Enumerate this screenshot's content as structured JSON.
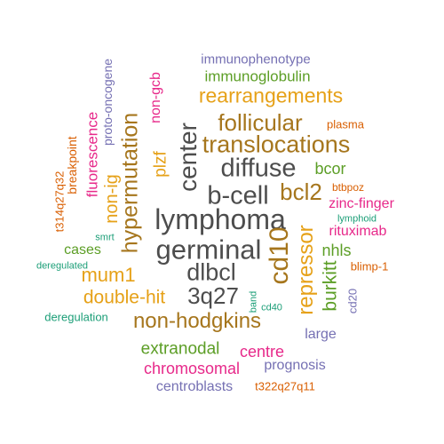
{
  "colors": {
    "dark": "#4d4d4d",
    "gold": "#e6a118",
    "brown": "#a6761d",
    "green": "#5c9e26",
    "magenta": "#e7298a",
    "orange": "#d95f02",
    "teal": "#1b9e77",
    "purple": "#7570b3"
  },
  "words": [
    {
      "text": "lymphoma"
    },
    {
      "text": "germinal"
    },
    {
      "text": "b-cell"
    },
    {
      "text": "diffuse"
    },
    {
      "text": "dlbcl"
    },
    {
      "text": "center"
    },
    {
      "text": "3q27"
    },
    {
      "text": "cd10"
    },
    {
      "text": "translocations"
    },
    {
      "text": "follicular"
    },
    {
      "text": "hypermutation"
    },
    {
      "text": "non-hodgkins"
    },
    {
      "text": "rearrangements"
    },
    {
      "text": "bcl2"
    },
    {
      "text": "repressor"
    },
    {
      "text": "mum1"
    },
    {
      "text": "double-hit"
    },
    {
      "text": "immunoglobulin"
    },
    {
      "text": "immunophenotype"
    },
    {
      "text": "burkitt"
    },
    {
      "text": "extranodal"
    },
    {
      "text": "chromosomal"
    },
    {
      "text": "centre"
    },
    {
      "text": "prognosis"
    },
    {
      "text": "centroblasts"
    },
    {
      "text": "t322q27q11"
    },
    {
      "text": "large"
    },
    {
      "text": "non-ig"
    },
    {
      "text": "plzf"
    },
    {
      "text": "non-gcb"
    },
    {
      "text": "fluorescence"
    },
    {
      "text": "proto-oncogene"
    },
    {
      "text": "breakpoint"
    },
    {
      "text": "t314q27q32"
    },
    {
      "text": "cases"
    },
    {
      "text": "smrt"
    },
    {
      "text": "deregulated"
    },
    {
      "text": "deregulation"
    },
    {
      "text": "bcor"
    },
    {
      "text": "btbpoz"
    },
    {
      "text": "zinc-finger"
    },
    {
      "text": "lymphoid"
    },
    {
      "text": "rituximab"
    },
    {
      "text": "nhls"
    },
    {
      "text": "blimp-1"
    },
    {
      "text": "cd20"
    },
    {
      "text": "plasma"
    },
    {
      "text": "band"
    },
    {
      "text": "cd40"
    }
  ]
}
